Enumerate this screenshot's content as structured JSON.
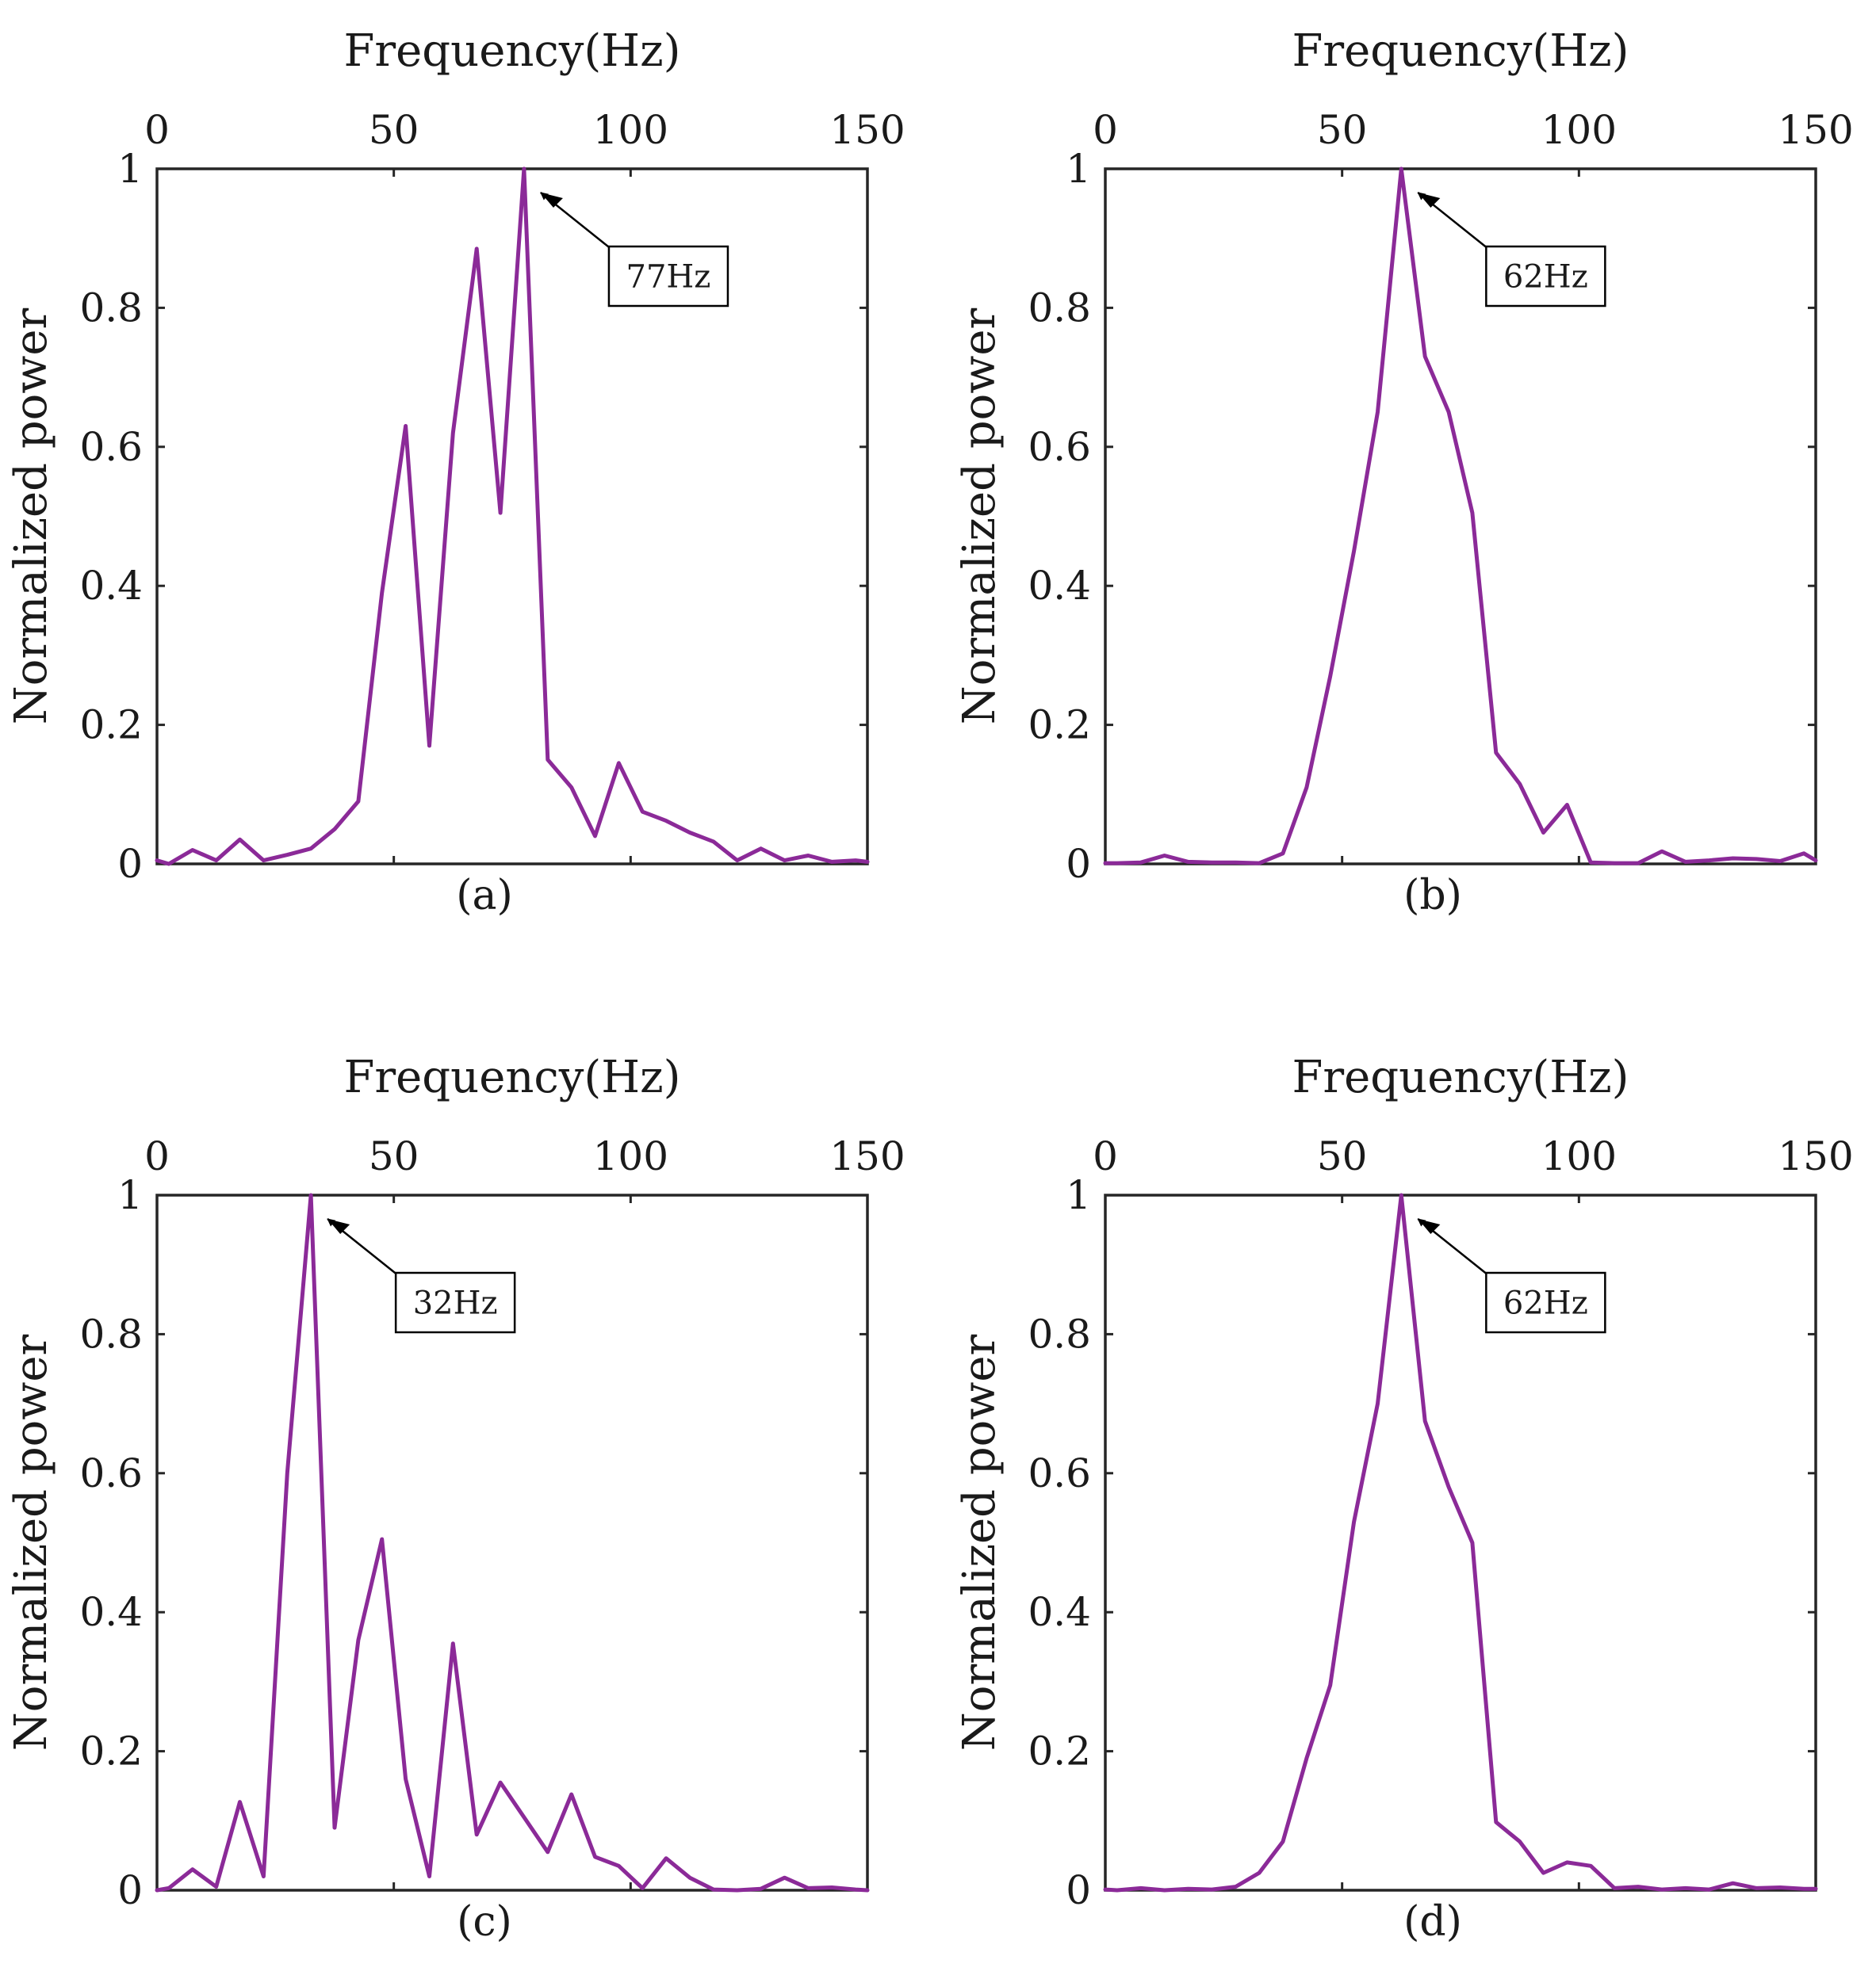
{
  "colors": {
    "series": "#8B2A98",
    "axis": "#262626",
    "text": "#1a1a1a"
  },
  "chart_data": [
    {
      "type": "line",
      "panel_label": "(a)",
      "xlabel": "Frequency(Hz)",
      "ylabel": "Normalized power",
      "xlim": [
        0,
        150
      ],
      "ylim": [
        0,
        1
      ],
      "xticks": [
        "0",
        "50",
        "100",
        "150"
      ],
      "yticks": [
        "0",
        "0.2",
        "0.4",
        "0.6",
        "0.8",
        "1"
      ],
      "annotation": {
        "text": "77Hz",
        "x": 77,
        "y": 1
      },
      "x": [
        0,
        2.5,
        7.5,
        12.5,
        17.5,
        22.5,
        27.5,
        32.5,
        37.5,
        42.5,
        47.5,
        52.5,
        57.5,
        62.5,
        67.5,
        72.5,
        77.5,
        82.5,
        87.5,
        92.5,
        97.5,
        102.5,
        107.5,
        112.5,
        117.5,
        122.5,
        127.5,
        132.5,
        137.5,
        142.5,
        147.5,
        150
      ],
      "y": [
        0.005,
        0,
        0.02,
        0.005,
        0.035,
        0.005,
        0.013,
        0.022,
        0.05,
        0.09,
        0.39,
        0.63,
        0.17,
        0.62,
        0.885,
        0.505,
        1.0,
        0.15,
        0.11,
        0.04,
        0.145,
        0.075,
        0.062,
        0.045,
        0.032,
        0.005,
        0.022,
        0.005,
        0.012,
        0.003,
        0.005,
        0.003
      ]
    },
    {
      "type": "line",
      "panel_label": "(b)",
      "xlabel": "Frequency(Hz)",
      "ylabel": "Normalized power",
      "xlim": [
        0,
        150
      ],
      "ylim": [
        0,
        1
      ],
      "xticks": [
        "0",
        "50",
        "100",
        "150"
      ],
      "yticks": [
        "0",
        "0.2",
        "0.4",
        "0.6",
        "0.8",
        "1"
      ],
      "annotation": {
        "text": "62Hz",
        "x": 62,
        "y": 1
      },
      "x": [
        0,
        2.5,
        7.5,
        12.5,
        17.5,
        22.5,
        27.5,
        32.5,
        37.5,
        42.5,
        47.5,
        52.5,
        57.5,
        62.5,
        67.5,
        72.5,
        77.5,
        82.5,
        87.5,
        92.5,
        97.5,
        102.5,
        107.5,
        112.5,
        117.5,
        122.5,
        127.5,
        132.5,
        137.5,
        142.5,
        147.5,
        150
      ],
      "y": [
        0.001,
        0.001,
        0.002,
        0.012,
        0.003,
        0.002,
        0.002,
        0.001,
        0.015,
        0.11,
        0.27,
        0.45,
        0.65,
        1.0,
        0.73,
        0.65,
        0.505,
        0.16,
        0.115,
        0.045,
        0.085,
        0.002,
        0.001,
        0.001,
        0.018,
        0.003,
        0.005,
        0.008,
        0.007,
        0.004,
        0.015,
        0.005
      ]
    },
    {
      "type": "line",
      "panel_label": "(c)",
      "xlabel": "Frequency(Hz)",
      "ylabel": "Normalized power",
      "xlim": [
        0,
        150
      ],
      "ylim": [
        0,
        1
      ],
      "xticks": [
        "0",
        "50",
        "100",
        "150"
      ],
      "yticks": [
        "0",
        "0.2",
        "0.4",
        "0.6",
        "0.8",
        "1"
      ],
      "annotation": {
        "text": "32Hz",
        "x": 32,
        "y": 1
      },
      "x": [
        0,
        2.5,
        7.5,
        12.5,
        17.5,
        22.5,
        27.5,
        32.5,
        37.5,
        42.5,
        47.5,
        52.5,
        57.5,
        62.5,
        67.5,
        72.5,
        77.5,
        82.5,
        87.5,
        92.5,
        97.5,
        102.5,
        107.5,
        112.5,
        117.5,
        122.5,
        127.5,
        132.5,
        137.5,
        142.5,
        147.5,
        150
      ],
      "y": [
        0,
        0.003,
        0.03,
        0.005,
        0.127,
        0.02,
        0.6,
        1.0,
        0.09,
        0.36,
        0.505,
        0.16,
        0.02,
        0.355,
        0.08,
        0.155,
        0.105,
        0.055,
        0.138,
        0.048,
        0.035,
        0.003,
        0.046,
        0.018,
        0.001,
        0,
        0.002,
        0.018,
        0.003,
        0.004,
        0.001,
        0
      ]
    },
    {
      "type": "line",
      "panel_label": "(d)",
      "xlabel": "Frequency(Hz)",
      "ylabel": "Normalized power",
      "xlim": [
        0,
        150
      ],
      "ylim": [
        0,
        1
      ],
      "xticks": [
        "0",
        "50",
        "100",
        "150"
      ],
      "yticks": [
        "0",
        "0.2",
        "0.4",
        "0.6",
        "0.8",
        "1"
      ],
      "annotation": {
        "text": "62Hz",
        "x": 62,
        "y": 1
      },
      "x": [
        0,
        2.5,
        7.5,
        12.5,
        17.5,
        22.5,
        27.5,
        32.5,
        37.5,
        42.5,
        47.5,
        52.5,
        57.5,
        62.5,
        67.5,
        72.5,
        77.5,
        82.5,
        87.5,
        92.5,
        97.5,
        102.5,
        107.5,
        112.5,
        117.5,
        122.5,
        127.5,
        132.5,
        137.5,
        142.5,
        147.5,
        150
      ],
      "y": [
        0.001,
        0,
        0.003,
        0,
        0.002,
        0.001,
        0.005,
        0.025,
        0.07,
        0.19,
        0.295,
        0.53,
        0.7,
        1.0,
        0.675,
        0.58,
        0.5,
        0.098,
        0.07,
        0.025,
        0.04,
        0.035,
        0.003,
        0.005,
        0.001,
        0.003,
        0.001,
        0.01,
        0.003,
        0.004,
        0.002,
        0.002
      ]
    }
  ]
}
